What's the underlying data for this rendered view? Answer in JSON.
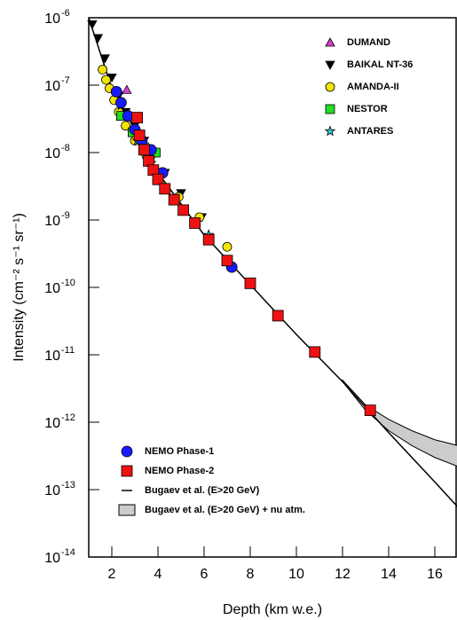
{
  "chart_data": {
    "type": "scatter",
    "x_label": "Depth (km w.e.)",
    "y_label": "Intensity (cm⁻² s⁻¹ sr⁻¹)",
    "xlim": [
      1,
      17
    ],
    "ylim": [
      1e-14,
      1e-06
    ],
    "log_y": true,
    "xticks": [
      2,
      4,
      6,
      8,
      10,
      12,
      14,
      16
    ],
    "yticks": [
      {
        "value": 1e-06,
        "label": "10",
        "exponent": "-6"
      },
      {
        "value": 1e-07,
        "label": "10",
        "exponent": "-7"
      },
      {
        "value": 1e-08,
        "label": "10",
        "exponent": "-8"
      },
      {
        "value": 1e-09,
        "label": "10",
        "exponent": "-9"
      },
      {
        "value": 1e-10,
        "label": "10",
        "exponent": "-10"
      },
      {
        "value": 1e-11,
        "label": "10",
        "exponent": "-11"
      },
      {
        "value": 1e-12,
        "label": "10",
        "exponent": "-12"
      },
      {
        "value": 1e-13,
        "label": "10",
        "exponent": "-13"
      },
      {
        "value": 1e-14,
        "label": "10",
        "exponent": "-14"
      }
    ],
    "series": [
      {
        "name": "DUMAND",
        "color": "#d63fd6",
        "marker": "triangle-up",
        "legend": "upper",
        "x": [
          2.65
        ],
        "values": [
          8.5e-08
        ]
      },
      {
        "name": "BAIKAL NT-36",
        "color": "#000000",
        "marker": "triangle-down",
        "legend": "upper",
        "x": [
          1.15,
          1.4,
          1.7,
          2.0,
          2.3,
          2.6,
          3.0,
          3.4,
          3.8,
          4.3,
          5.0,
          5.9
        ],
        "values": [
          8e-07,
          5e-07,
          2.5e-07,
          1.3e-07,
          7e-08,
          4e-08,
          2.5e-08,
          1.5e-08,
          9e-09,
          5e-09,
          2.5e-09,
          1.1e-09
        ]
      },
      {
        "name": "AMANDA-II",
        "color": "#f2e600",
        "marker": "circle",
        "legend": "upper",
        "x": [
          1.6,
          1.75,
          1.9,
          2.1,
          2.3,
          2.6,
          3.0,
          3.5,
          4.0,
          4.9,
          5.8,
          7.0
        ],
        "values": [
          1.7e-07,
          1.2e-07,
          9e-08,
          6e-08,
          4e-08,
          2.5e-08,
          1.5e-08,
          9e-09,
          5e-09,
          2.2e-09,
          1.1e-09,
          4e-10
        ]
      },
      {
        "name": "NESTOR",
        "color": "#22dd22",
        "marker": "square",
        "legend": "upper",
        "x": [
          2.4,
          2.9,
          3.4,
          3.9
        ],
        "values": [
          3.5e-08,
          2e-08,
          1.2e-08,
          1e-08
        ]
      },
      {
        "name": "ANTARES",
        "color": "#33cccc",
        "marker": "star",
        "legend": "upper",
        "x": [
          2.4,
          3.1,
          3.7,
          6.2
        ],
        "values": [
          5e-08,
          1.5e-08,
          7e-09,
          6e-10
        ]
      },
      {
        "name": "NEMO Phase-1",
        "color": "#1a1aff",
        "marker": "circle",
        "legend": "lower",
        "x": [
          2.2,
          2.4,
          2.7,
          3.0,
          3.3,
          3.7,
          4.2,
          7.2
        ],
        "values": [
          8e-08,
          5.5e-08,
          3.5e-08,
          2.2e-08,
          1.5e-08,
          1.1e-08,
          5e-09,
          2e-10
        ]
      },
      {
        "name": "NEMO Phase-2",
        "color": "#ee1111",
        "marker": "square",
        "legend": "lower",
        "x": [
          3.1,
          3.2,
          3.4,
          3.6,
          3.8,
          4.0,
          4.3,
          4.7,
          5.1,
          5.6,
          6.2,
          7.0,
          8.0,
          9.2,
          10.8,
          13.2
        ],
        "values": [
          3.3e-08,
          1.8e-08,
          1.1e-08,
          7.5e-09,
          5.5e-09,
          4e-09,
          2.9e-09,
          2e-09,
          1.4e-09,
          9e-10,
          5.1e-10,
          2.5e-10,
          1.15e-10,
          3.8e-11,
          1.1e-11,
          1.5e-12
        ]
      }
    ],
    "lines": [
      {
        "name": "Bugaev et al. (E>20 GeV)",
        "color": "#000000",
        "x": [
          1,
          2,
          3,
          4,
          6,
          8,
          10,
          12,
          14,
          16,
          17
        ],
        "values": [
          1e-06,
          9e-08,
          2.2e-08,
          5e-09,
          6e-10,
          1.1e-10,
          2e-11,
          4e-12,
          7e-13,
          1.3e-13,
          5.5e-14
        ]
      }
    ],
    "bands": [
      {
        "name": "Bugaev et al. (E>20 GeV) + nu atm.",
        "color": "#cccccc",
        "x": [
          12,
          13,
          14,
          15,
          16,
          17
        ],
        "lower": [
          4e-12,
          1.5e-12,
          7.5e-13,
          4.5e-13,
          3e-13,
          2.2e-13
        ],
        "upper": [
          4.2e-12,
          1.8e-12,
          1.1e-12,
          7.5e-13,
          5.5e-13,
          4.5e-13
        ]
      }
    ]
  }
}
